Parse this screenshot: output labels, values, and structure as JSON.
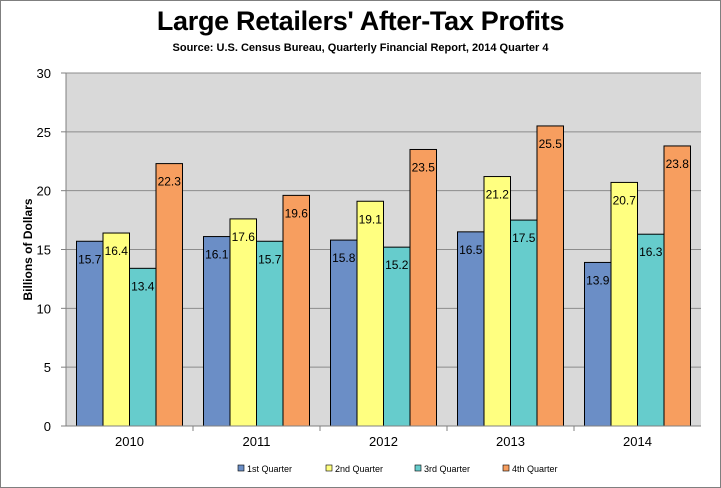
{
  "chart_data": {
    "type": "bar",
    "title": "Large Retailers' After-Tax Profits",
    "subtitle": "Source: U.S. Census Bureau, Quarterly Financial Report, 2014 Quarter 4",
    "xlabel": "",
    "ylabel": "Billions of Dollars",
    "ylim": [
      0,
      30
    ],
    "yticks": [
      0,
      5,
      10,
      15,
      20,
      25,
      30
    ],
    "grid": true,
    "legend_position": "bottom",
    "categories": [
      "2010",
      "2011",
      "2012",
      "2013",
      "2014"
    ],
    "series": [
      {
        "name": "1st Quarter",
        "color": "#6b8ec6",
        "values": [
          15.7,
          16.1,
          15.8,
          16.5,
          13.9
        ]
      },
      {
        "name": "2nd Quarter",
        "color": "#ffff80",
        "values": [
          16.4,
          17.6,
          19.1,
          21.2,
          20.7
        ]
      },
      {
        "name": "3rd Quarter",
        "color": "#66cccc",
        "values": [
          13.4,
          15.7,
          15.2,
          17.5,
          16.3
        ]
      },
      {
        "name": "4th Quarter",
        "color": "#f79e5f",
        "values": [
          22.3,
          19.6,
          23.5,
          25.5,
          23.8
        ]
      }
    ]
  }
}
